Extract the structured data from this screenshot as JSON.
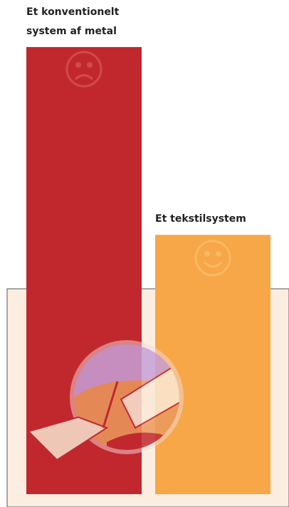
{
  "chart_data": {
    "type": "bar",
    "categories": [
      "Et konventionelt system af metal",
      "Et tekstilsystem"
    ],
    "values": [
      100,
      58
    ],
    "colors": [
      "#c1282e",
      "#f7a748"
    ],
    "ylim": [
      0,
      100
    ]
  }
}
